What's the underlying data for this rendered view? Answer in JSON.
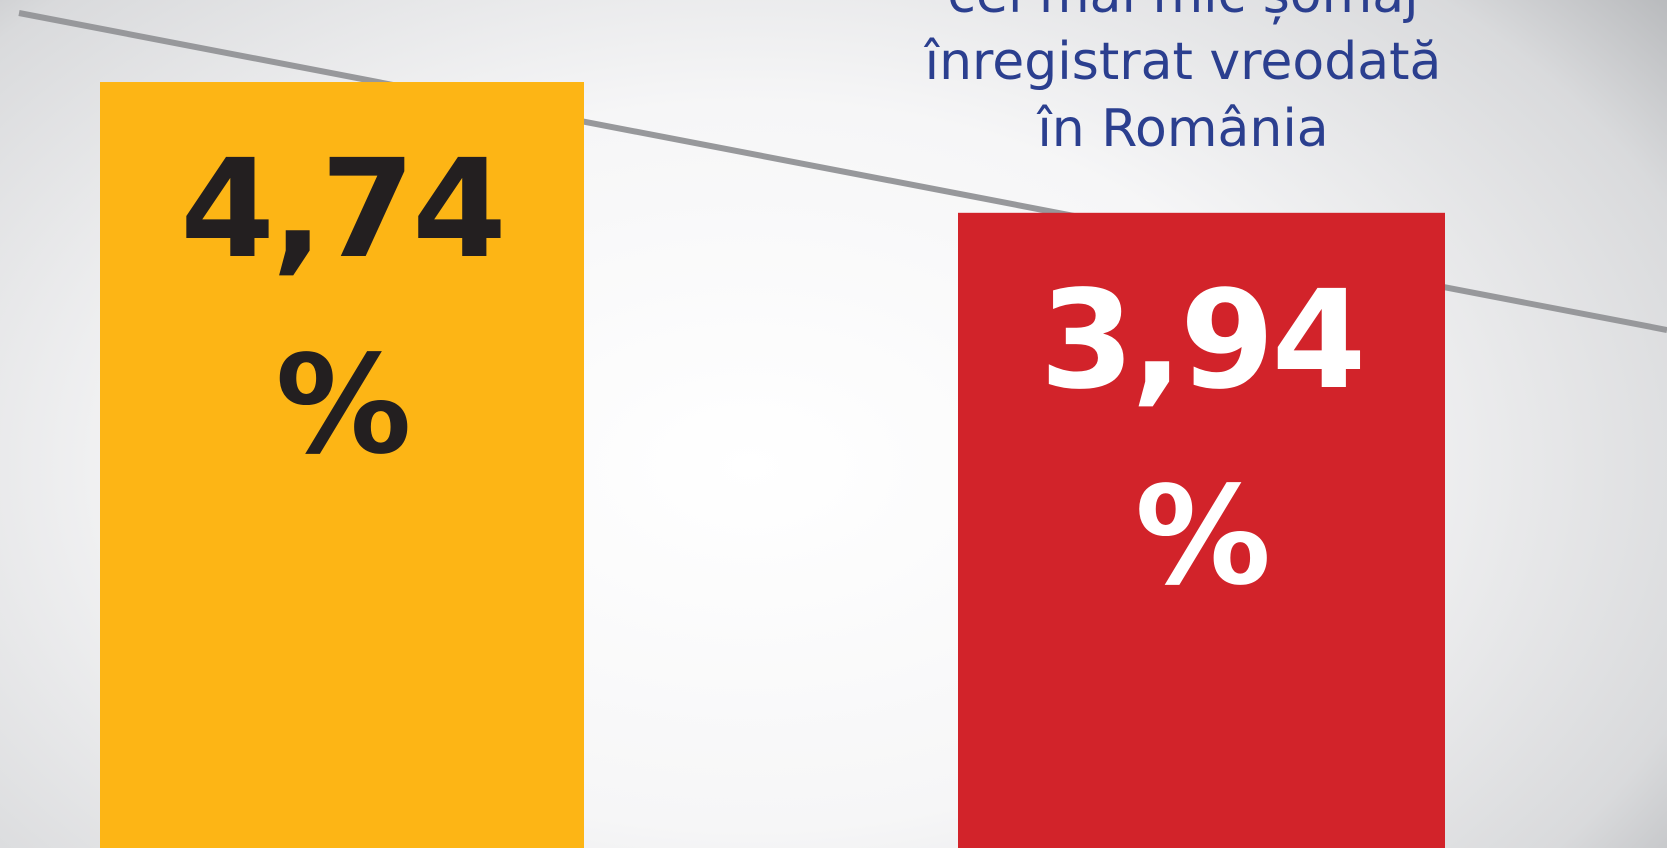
{
  "chart_data": {
    "type": "bar",
    "title_lines": [
      "cel mai mic șomaj",
      "înregistrat vreodată",
      "în România"
    ],
    "categories": [
      null,
      null
    ],
    "values": [
      4.74,
      3.94
    ],
    "value_labels": [
      "4,74 %",
      "3,94 %"
    ],
    "colors": [
      "#fdb515",
      "#d2232a"
    ],
    "label_colors": [
      "#231f20",
      "#ffffff"
    ]
  }
}
